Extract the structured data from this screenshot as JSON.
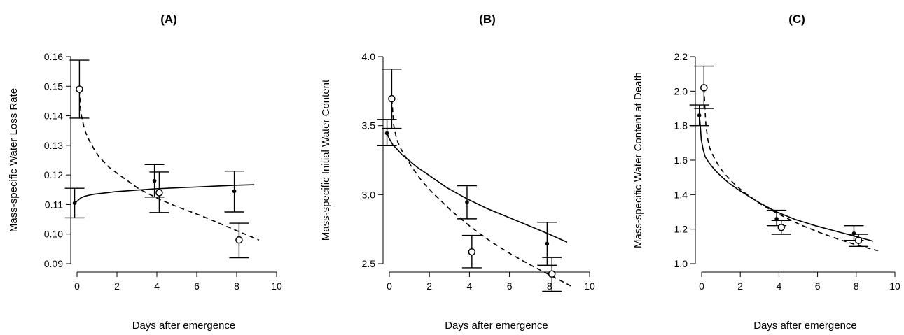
{
  "chart_data": [
    {
      "type": "scatter",
      "title": "(A)",
      "xlabel": "Days after emergence",
      "ylabel": "Mass-specific Water Loss Rate",
      "xlim": [
        0,
        10
      ],
      "ylim": [
        0.09,
        0.16
      ],
      "xticks": [
        0,
        2,
        4,
        6,
        8,
        10
      ],
      "yticks": [
        0.09,
        0.1,
        0.11,
        0.12,
        0.13,
        0.14,
        0.15,
        0.16
      ],
      "ytick_labels": [
        "0.09",
        "0.10",
        "0.11",
        "0.12",
        "0.13",
        "0.14",
        "0.15",
        "0.16"
      ],
      "grid": false,
      "series": [
        {
          "marker": "filled",
          "points": [
            {
              "x": 0,
              "y": 0.1105,
              "lo": 0.1055,
              "hi": 0.1155
            },
            {
              "x": 4,
              "y": 0.118,
              "lo": 0.1125,
              "hi": 0.1235
            },
            {
              "x": 8,
              "y": 0.1145,
              "lo": 0.1075,
              "hi": 0.1213
            }
          ],
          "fit": {
            "line": "solid",
            "x": [
              0,
              0.05,
              0.1,
              0.2,
              0.3,
              0.5,
              0.75,
              1,
              1.5,
              2,
              3,
              4,
              5,
              6,
              7,
              8,
              9
            ],
            "y": [
              0.1105,
              0.1107,
              0.111,
              0.1116,
              0.1122,
              0.1128,
              0.1132,
              0.1135,
              0.1139,
              0.1143,
              0.1148,
              0.1153,
              0.1156,
              0.1159,
              0.1162,
              0.1165,
              0.1167
            ]
          }
        },
        {
          "marker": "open",
          "points": [
            {
              "x": 0,
              "y": 0.149,
              "lo": 0.1392,
              "hi": 0.1588
            },
            {
              "x": 4,
              "y": 0.114,
              "lo": 0.1073,
              "hi": 0.121
            },
            {
              "x": 8,
              "y": 0.098,
              "lo": 0.092,
              "hi": 0.1037
            }
          ],
          "fit": {
            "line": "dashed",
            "x": [
              0,
              0.05,
              0.1,
              0.2,
              0.3,
              0.5,
              0.75,
              1,
              1.5,
              2,
              3,
              4,
              5,
              6,
              7,
              8,
              9
            ],
            "y": [
              0.149,
              0.143,
              0.14,
              0.137,
              0.1345,
              0.1315,
              0.1285,
              0.126,
              0.1225,
              0.12,
              0.1152,
              0.1118,
              0.109,
              0.1065,
              0.1037,
              0.1008,
              0.098
            ]
          }
        }
      ]
    },
    {
      "type": "scatter",
      "title": "(B)",
      "xlabel": "Days after emergence",
      "ylabel": "Mass-specific Initial Water Content",
      "xlim": [
        0,
        10
      ],
      "ylim": [
        2.5,
        4.0
      ],
      "xticks": [
        0,
        2,
        4,
        6,
        8,
        10
      ],
      "yticks": [
        2.5,
        3.0,
        3.5,
        4.0
      ],
      "ytick_labels": [
        "2.5",
        "3.0",
        "3.5",
        "4.0"
      ],
      "grid": false,
      "series": [
        {
          "marker": "filled",
          "points": [
            {
              "x": 0,
              "y": 3.445,
              "lo": 3.355,
              "hi": 3.545
            },
            {
              "x": 4,
              "y": 2.945,
              "lo": 2.825,
              "hi": 3.065
            },
            {
              "x": 8,
              "y": 2.645,
              "lo": 2.488,
              "hi": 2.8
            }
          ],
          "fit": {
            "line": "solid",
            "x": [
              0,
              0.05,
              0.1,
              0.2,
              0.3,
              0.5,
              0.75,
              1,
              1.5,
              2,
              3,
              4,
              5,
              6,
              7,
              8,
              9
            ],
            "y": [
              3.445,
              3.43,
              3.41,
              3.385,
              3.36,
              3.33,
              3.29,
              3.26,
              3.2,
              3.15,
              3.05,
              2.97,
              2.9,
              2.84,
              2.78,
              2.72,
              2.655
            ]
          }
        },
        {
          "marker": "open",
          "points": [
            {
              "x": 0,
              "y": 3.695,
              "lo": 3.48,
              "hi": 3.91
            },
            {
              "x": 4,
              "y": 2.585,
              "lo": 2.47,
              "hi": 2.705
            },
            {
              "x": 8,
              "y": 2.425,
              "lo": 2.3,
              "hi": 2.545
            }
          ],
          "fit": {
            "line": "dashed",
            "x": [
              0,
              0.05,
              0.1,
              0.2,
              0.3,
              0.5,
              0.75,
              1,
              1.5,
              2,
              3,
              4,
              5,
              6,
              7,
              8,
              9
            ],
            "y": [
              3.695,
              3.6,
              3.5,
              3.43,
              3.38,
              3.32,
              3.26,
              3.2,
              3.1,
              3.02,
              2.88,
              2.76,
              2.655,
              2.565,
              2.485,
              2.41,
              2.335
            ]
          }
        }
      ]
    },
    {
      "type": "scatter",
      "title": "(C)",
      "xlabel": "Days after emergence",
      "ylabel": "Mass-specific Water Content at Death",
      "xlim": [
        0,
        10
      ],
      "ylim": [
        1.0,
        2.2
      ],
      "xticks": [
        0,
        2,
        4,
        6,
        8,
        10
      ],
      "yticks": [
        1.0,
        1.2,
        1.4,
        1.6,
        1.8,
        2.0,
        2.2
      ],
      "ytick_labels": [
        "1.0",
        "1.2",
        "1.4",
        "1.6",
        "1.8",
        "2.0",
        "2.2"
      ],
      "grid": false,
      "series": [
        {
          "marker": "filled",
          "points": [
            {
              "x": 0,
              "y": 1.86,
              "lo": 1.8,
              "hi": 1.92
            },
            {
              "x": 4,
              "y": 1.26,
              "lo": 1.22,
              "hi": 1.31
            },
            {
              "x": 8,
              "y": 1.175,
              "lo": 1.135,
              "hi": 1.22
            }
          ],
          "fit": {
            "line": "solid",
            "x": [
              0,
              0.05,
              0.1,
              0.2,
              0.3,
              0.5,
              0.75,
              1,
              1.5,
              2,
              3,
              4,
              5,
              6,
              7,
              8,
              9
            ],
            "y": [
              1.86,
              1.8,
              1.72,
              1.66,
              1.62,
              1.585,
              1.55,
              1.52,
              1.47,
              1.43,
              1.36,
              1.3,
              1.255,
              1.22,
              1.19,
              1.16,
              1.13
            ]
          }
        },
        {
          "marker": "open",
          "points": [
            {
              "x": 0,
              "y": 2.02,
              "lo": 1.9,
              "hi": 2.145
            },
            {
              "x": 4,
              "y": 1.21,
              "lo": 1.17,
              "hi": 1.25
            },
            {
              "x": 8,
              "y": 1.135,
              "lo": 1.1,
              "hi": 1.17
            }
          ],
          "fit": {
            "line": "dashed",
            "x": [
              0,
              0.05,
              0.1,
              0.2,
              0.3,
              0.5,
              0.75,
              1,
              1.5,
              2,
              3,
              4,
              5,
              6,
              7,
              8,
              9
            ],
            "y": [
              2.02,
              1.9,
              1.8,
              1.72,
              1.67,
              1.62,
              1.57,
              1.53,
              1.47,
              1.42,
              1.34,
              1.28,
              1.225,
              1.18,
              1.14,
              1.105,
              1.075
            ]
          }
        }
      ]
    }
  ]
}
